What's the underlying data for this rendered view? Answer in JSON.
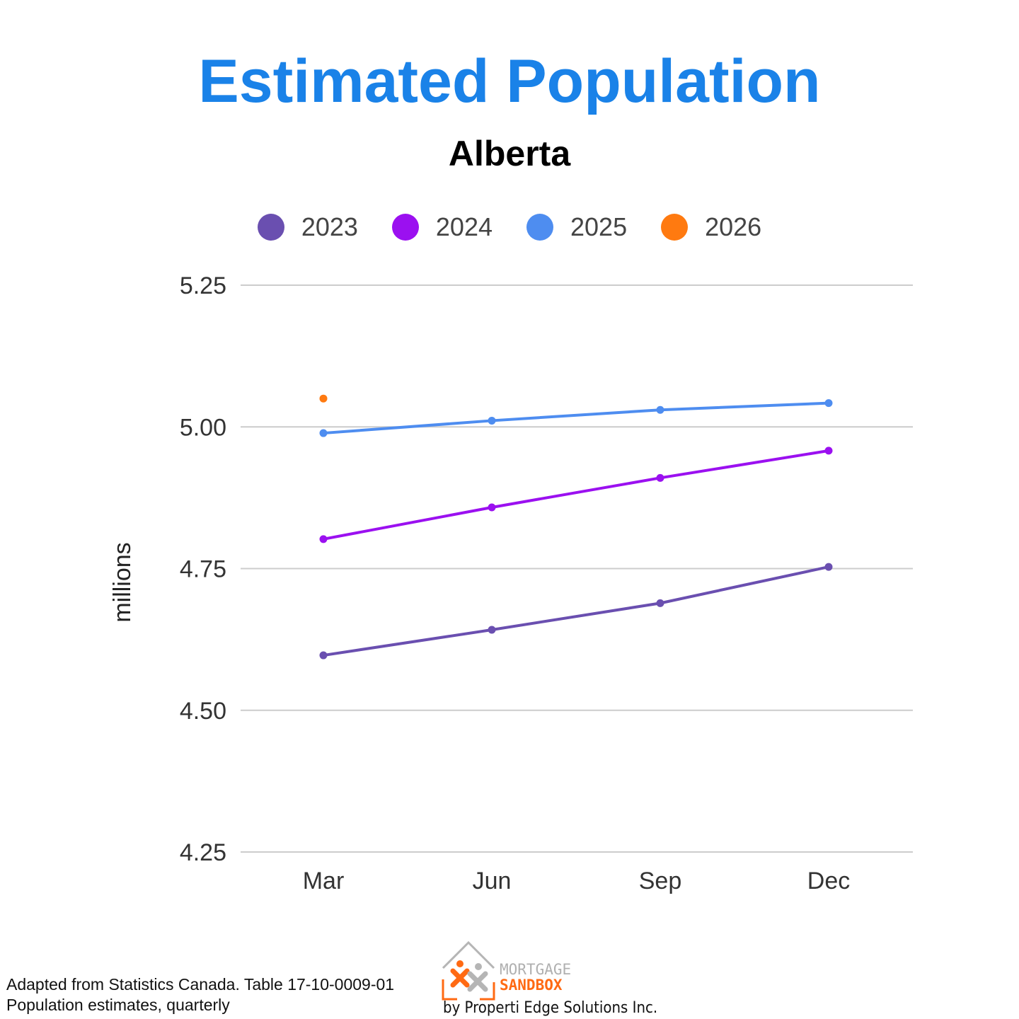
{
  "chart_data": {
    "type": "line",
    "title": "Estimated Population",
    "subtitle": "Alberta",
    "ylabel": "millions",
    "xlabel": "",
    "categories": [
      "Mar",
      "Jun",
      "Sep",
      "Dec"
    ],
    "ylim": [
      4.25,
      5.25
    ],
    "yticks": [
      "4.25",
      "4.50",
      "4.75",
      "5.00",
      "5.25"
    ],
    "grid": true,
    "legend_position": "top",
    "series": [
      {
        "name": "2023",
        "color": "#6a4fb0",
        "values": [
          4.597,
          4.642,
          4.689,
          4.753
        ]
      },
      {
        "name": "2024",
        "color": "#9b10f0",
        "values": [
          4.802,
          4.858,
          4.91,
          4.958
        ]
      },
      {
        "name": "2025",
        "color": "#4e8df0",
        "values": [
          4.989,
          5.011,
          5.03,
          5.042
        ]
      },
      {
        "name": "2026",
        "color": "#ff7a10",
        "values": [
          5.05,
          null,
          null,
          null
        ]
      }
    ]
  },
  "source": {
    "line1": "Adapted from Statistics Canada. Table 17-10-0009-01",
    "line2": "Population estimates, quarterly"
  },
  "logo": {
    "word1": "MORTGAGE",
    "word2": "SANDBOX",
    "byline": "by Properti Edge Solutions Inc."
  }
}
